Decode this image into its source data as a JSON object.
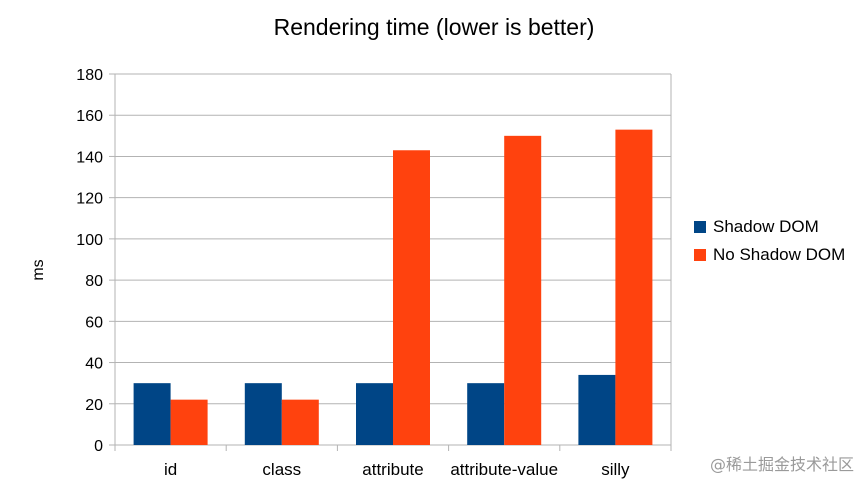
{
  "chart_data": {
    "type": "bar",
    "title": "Rendering time (lower is better)",
    "xlabel": "",
    "ylabel": "ms",
    "categories": [
      "id",
      "class",
      "attribute",
      "attribute-value",
      "silly"
    ],
    "series": [
      {
        "name": "Shadow DOM",
        "color": "#004586",
        "values": [
          30,
          30,
          30,
          30,
          34
        ]
      },
      {
        "name": "No Shadow DOM",
        "color": "#ff420e",
        "values": [
          22,
          22,
          143,
          150,
          153
        ]
      }
    ],
    "ylim": [
      0,
      180
    ],
    "yticks": [
      0,
      20,
      40,
      60,
      80,
      100,
      120,
      140,
      160,
      180
    ],
    "grid": true,
    "legend": "right"
  },
  "watermark": "@稀土掘金技术社区"
}
